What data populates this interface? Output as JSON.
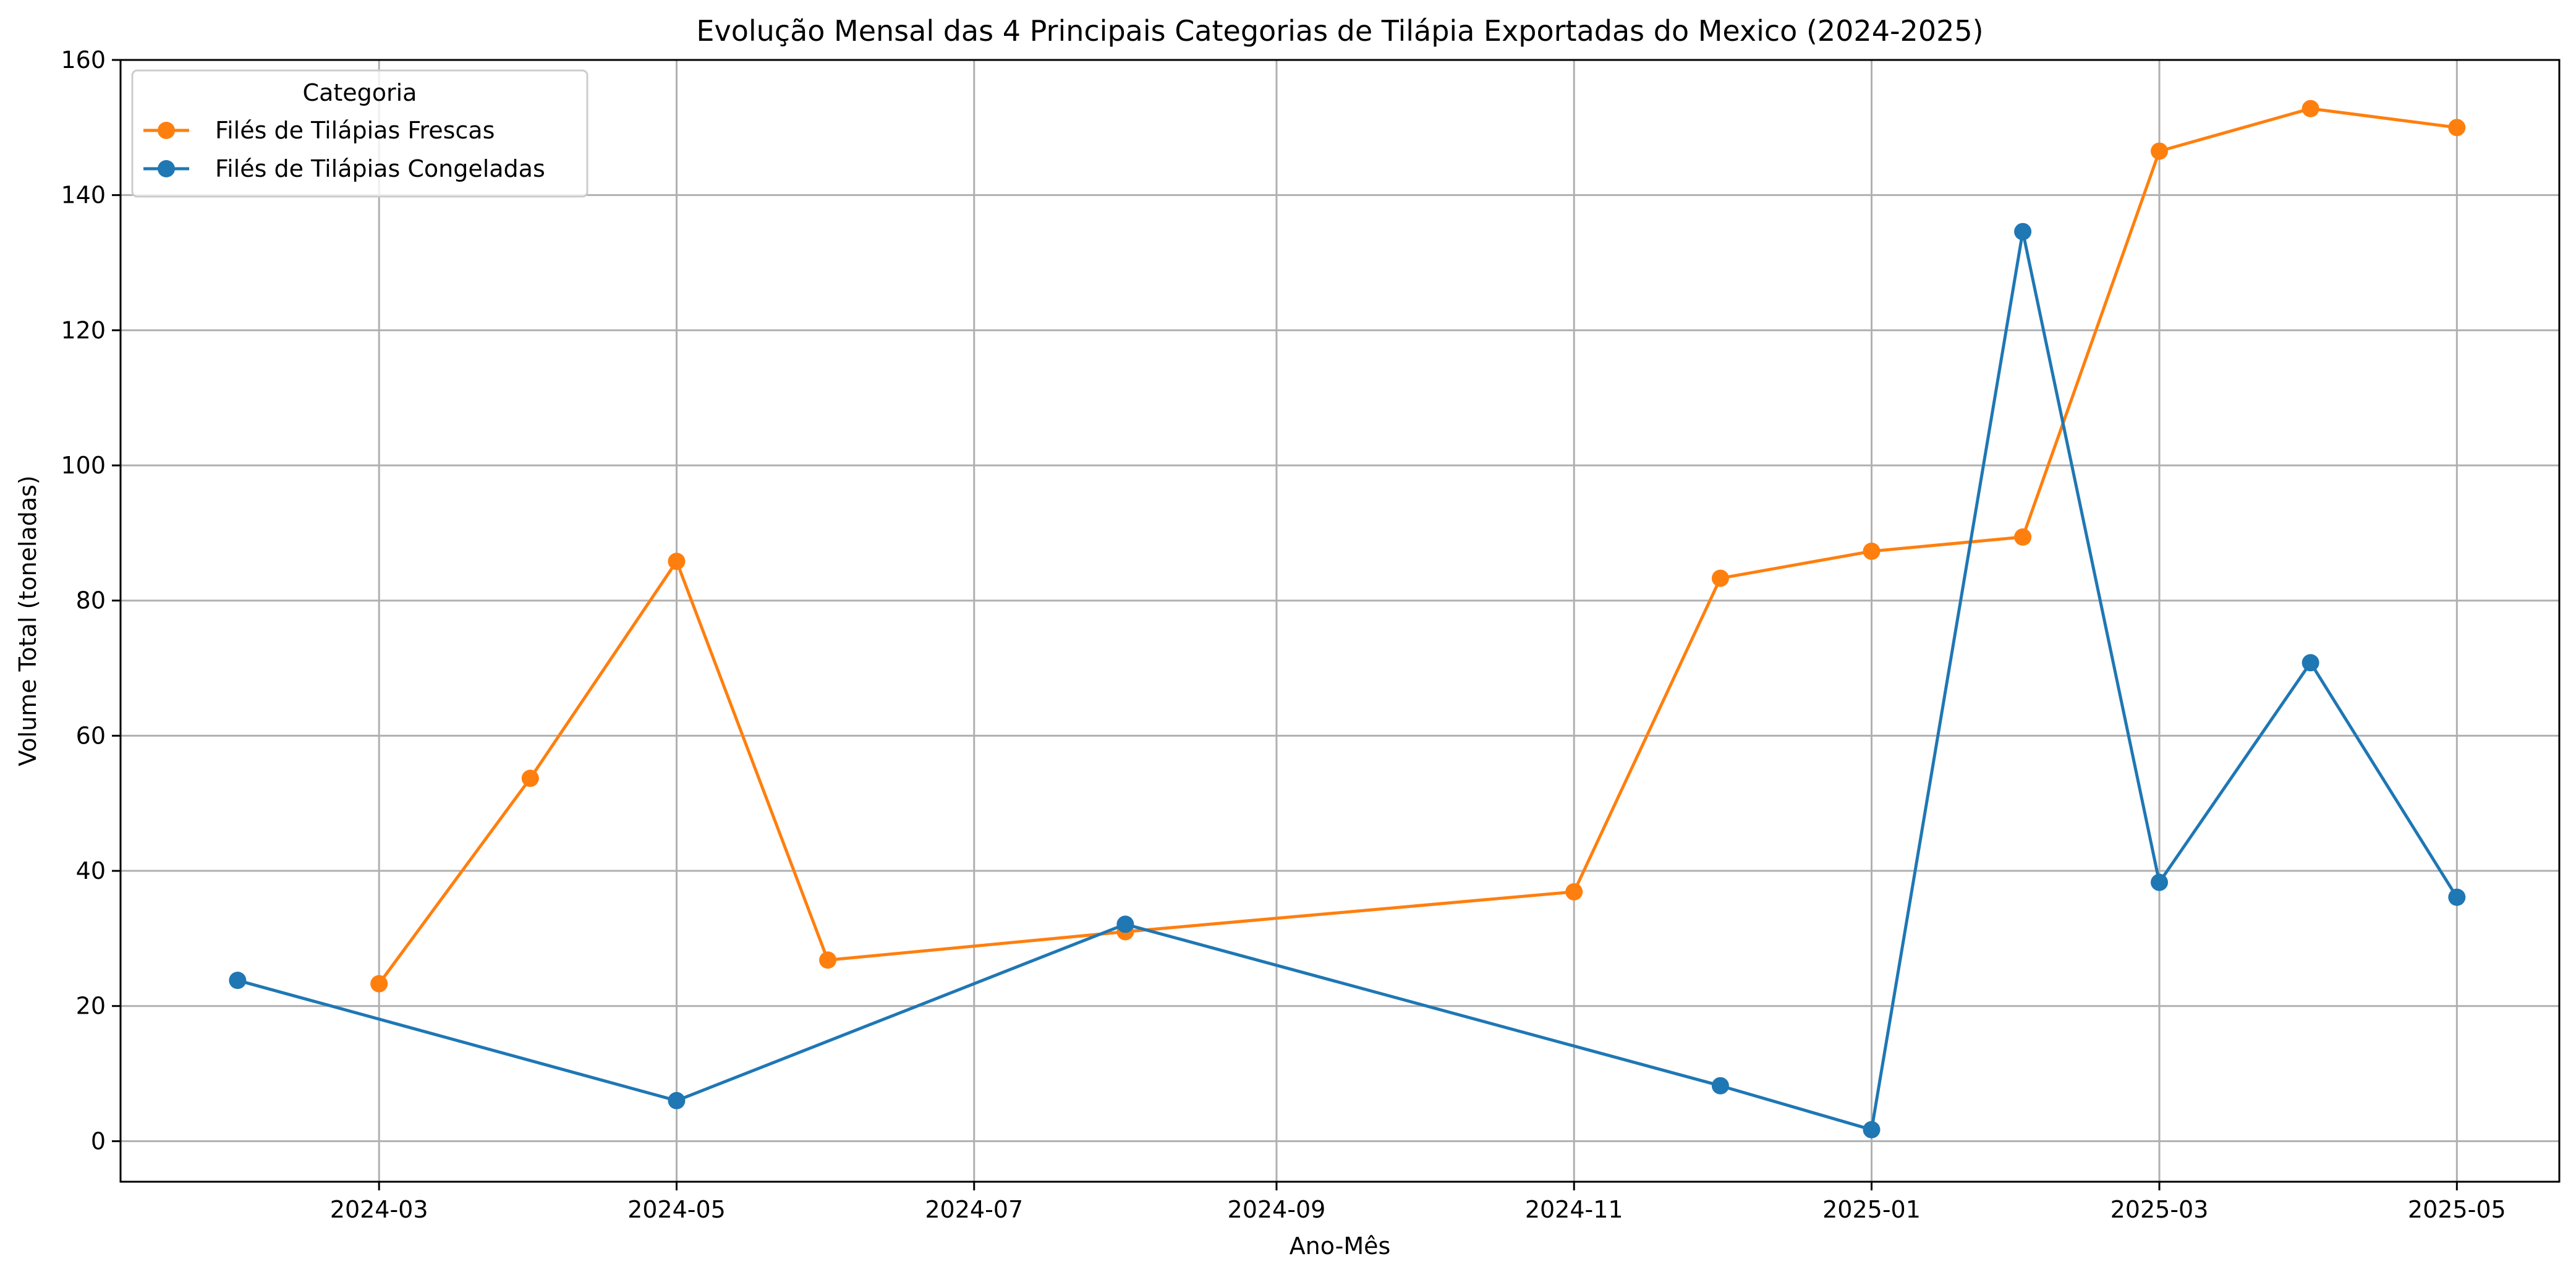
{
  "chart_data": {
    "type": "line",
    "title": "Evolução Mensal das 4 Principais Categorias de Tilápia Exportadas do Mexico (2024-2025)",
    "xlabel": "Ano-Mês",
    "ylabel": "Volume Total (toneladas)",
    "x_tick_labels": [
      "2024-03",
      "2024-05",
      "2024-07",
      "2024-09",
      "2024-11",
      "2025-01",
      "2025-03",
      "2025-05"
    ],
    "x_range": [
      "2024-01-08",
      "2025-05-22"
    ],
    "y_ticks": [
      0,
      20,
      40,
      60,
      80,
      100,
      120,
      140,
      160
    ],
    "ylim": [
      -6,
      160
    ],
    "grid": true,
    "legend": {
      "title": "Categoria",
      "placement": "top-left"
    },
    "series": [
      {
        "name": "Filés de Tilápias Frescas",
        "color": "#ff7f0e",
        "marker": "circle",
        "points": [
          {
            "x": "2024-03-01",
            "y": 23.3
          },
          {
            "x": "2024-04-01",
            "y": 53.7
          },
          {
            "x": "2024-05-01",
            "y": 85.8
          },
          {
            "x": "2024-06-01",
            "y": 26.8
          },
          {
            "x": "2024-08-01",
            "y": 31.0
          },
          {
            "x": "2024-11-01",
            "y": 36.9
          },
          {
            "x": "2024-12-01",
            "y": 83.3
          },
          {
            "x": "2025-01-01",
            "y": 87.3
          },
          {
            "x": "2025-02-01",
            "y": 89.4
          },
          {
            "x": "2025-03-01",
            "y": 146.5
          },
          {
            "x": "2025-04-01",
            "y": 152.8
          },
          {
            "x": "2025-05-01",
            "y": 150.0
          }
        ]
      },
      {
        "name": "Filés de Tilápias Congeladas",
        "color": "#1f77b4",
        "marker": "circle",
        "points": [
          {
            "x": "2024-02-01",
            "y": 23.8
          },
          {
            "x": "2024-05-01",
            "y": 6.0
          },
          {
            "x": "2024-08-01",
            "y": 32.1
          },
          {
            "x": "2024-12-01",
            "y": 8.2
          },
          {
            "x": "2025-01-01",
            "y": 1.7
          },
          {
            "x": "2025-02-01",
            "y": 134.6
          },
          {
            "x": "2025-03-01",
            "y": 38.3
          },
          {
            "x": "2025-04-01",
            "y": 70.8
          },
          {
            "x": "2025-05-01",
            "y": 36.1
          }
        ]
      }
    ]
  }
}
